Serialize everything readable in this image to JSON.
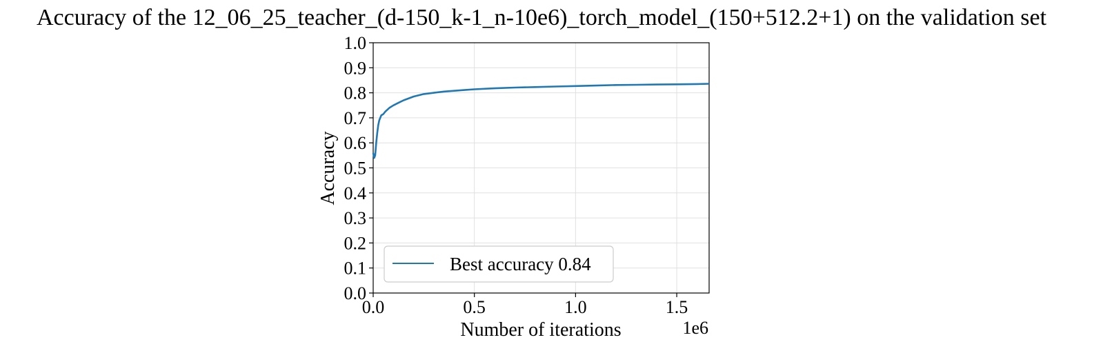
{
  "chart_data": {
    "type": "line",
    "title": "Accuracy of the 12_06_25_teacher_(d-150_k-1_n-10e6)_torch_model_(150+512.2+1) on the validation set",
    "xlabel": "Number of iterations",
    "ylabel": "Accuracy",
    "x_offset_label": "1e6",
    "xlim": [
      0,
      1660000
    ],
    "ylim": [
      0.0,
      1.0
    ],
    "x_ticks": [
      0,
      500000,
      1000000,
      1500000
    ],
    "x_tick_labels": [
      "0.0",
      "0.5",
      "1.0",
      "1.5"
    ],
    "y_ticks": [
      0.0,
      0.1,
      0.2,
      0.3,
      0.4,
      0.5,
      0.6,
      0.7,
      0.8,
      0.9,
      1.0
    ],
    "y_tick_labels": [
      "0.0",
      "0.1",
      "0.2",
      "0.3",
      "0.4",
      "0.5",
      "0.6",
      "0.7",
      "0.8",
      "0.9",
      "1.0"
    ],
    "grid": true,
    "legend_position": "lower-left",
    "series": [
      {
        "name": "Best accuracy 0.84",
        "color": "#1f77b4",
        "x": [
          0,
          5000,
          10000,
          15000,
          20000,
          25000,
          30000,
          40000,
          50000,
          60000,
          80000,
          100000,
          125000,
          150000,
          200000,
          250000,
          300000,
          350000,
          400000,
          450000,
          500000,
          600000,
          700000,
          800000,
          900000,
          1000000,
          1100000,
          1200000,
          1300000,
          1400000,
          1500000,
          1600000,
          1660000
        ],
        "y": [
          0.56,
          0.54,
          0.55,
          0.6,
          0.64,
          0.67,
          0.69,
          0.71,
          0.715,
          0.725,
          0.74,
          0.75,
          0.76,
          0.77,
          0.785,
          0.795,
          0.8,
          0.805,
          0.808,
          0.811,
          0.814,
          0.818,
          0.821,
          0.823,
          0.825,
          0.827,
          0.829,
          0.831,
          0.832,
          0.833,
          0.834,
          0.835,
          0.836
        ]
      }
    ]
  }
}
